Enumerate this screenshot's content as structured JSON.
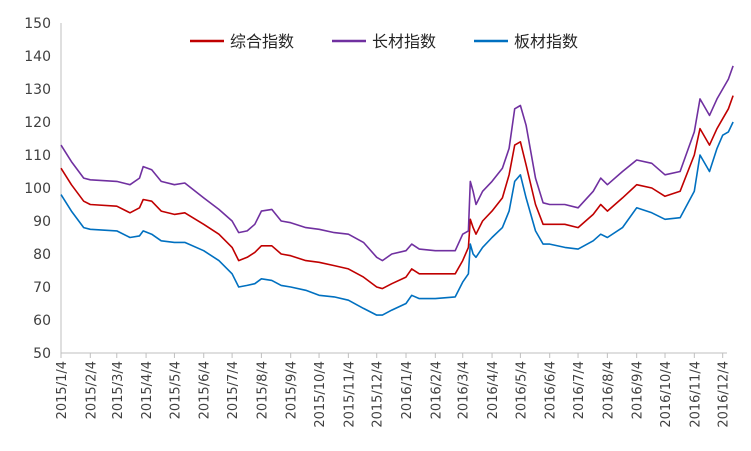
{
  "chart_data": {
    "type": "line",
    "title": "",
    "xlabel": "",
    "ylabel": "",
    "ylim": [
      50,
      150
    ],
    "yticks": [
      50,
      60,
      70,
      80,
      90,
      100,
      110,
      120,
      130,
      140,
      150
    ],
    "grid": false,
    "legend_position": "top-center",
    "x_tick_labels": [
      "2015/1/4",
      "2015/2/4",
      "2015/3/4",
      "2015/4/4",
      "2015/5/4",
      "2015/6/4",
      "2015/7/4",
      "2015/8/4",
      "2015/9/4",
      "2015/10/4",
      "2015/11/4",
      "2015/12/4",
      "2016/1/4",
      "2016/2/4",
      "2016/3/4",
      "2016/4/4",
      "2016/5/4",
      "2016/6/4",
      "2016/7/4",
      "2016/8/4",
      "2016/9/4",
      "2016/10/4",
      "2016/11/4",
      "2016/12/4"
    ],
    "series": [
      {
        "name": "综合指数",
        "color": "#C00000",
        "points": [
          [
            "2015-01-04",
            106
          ],
          [
            "2015-01-15",
            101
          ],
          [
            "2015-01-28",
            96
          ],
          [
            "2015-02-04",
            95
          ],
          [
            "2015-03-04",
            94.5
          ],
          [
            "2015-03-18",
            92.5
          ],
          [
            "2015-03-28",
            94
          ],
          [
            "2015-04-01",
            96.5
          ],
          [
            "2015-04-10",
            96
          ],
          [
            "2015-04-20",
            93
          ],
          [
            "2015-05-04",
            92
          ],
          [
            "2015-05-15",
            92.5
          ],
          [
            "2015-06-04",
            89
          ],
          [
            "2015-06-20",
            86
          ],
          [
            "2015-07-04",
            82
          ],
          [
            "2015-07-11",
            78
          ],
          [
            "2015-07-20",
            79
          ],
          [
            "2015-07-28",
            80.5
          ],
          [
            "2015-08-04",
            82.5
          ],
          [
            "2015-08-15",
            82.5
          ],
          [
            "2015-08-25",
            80
          ],
          [
            "2015-09-04",
            79.5
          ],
          [
            "2015-09-20",
            78
          ],
          [
            "2015-10-04",
            77.5
          ],
          [
            "2015-10-20",
            76.5
          ],
          [
            "2015-11-04",
            75.5
          ],
          [
            "2015-11-20",
            73
          ],
          [
            "2015-12-04",
            70
          ],
          [
            "2015-12-10",
            69.5
          ],
          [
            "2015-12-20",
            71
          ],
          [
            "2016-01-04",
            73
          ],
          [
            "2016-01-10",
            75.5
          ],
          [
            "2016-01-18",
            74
          ],
          [
            "2016-02-04",
            74
          ],
          [
            "2016-02-25",
            74
          ],
          [
            "2016-03-04",
            78
          ],
          [
            "2016-03-10",
            82
          ],
          [
            "2016-03-12",
            90.5
          ],
          [
            "2016-03-15",
            88
          ],
          [
            "2016-03-18",
            86
          ],
          [
            "2016-03-25",
            90
          ],
          [
            "2016-04-04",
            93
          ],
          [
            "2016-04-15",
            97
          ],
          [
            "2016-04-22",
            104
          ],
          [
            "2016-04-28",
            113
          ],
          [
            "2016-05-04",
            114
          ],
          [
            "2016-05-10",
            107
          ],
          [
            "2016-05-20",
            95
          ],
          [
            "2016-05-28",
            89
          ],
          [
            "2016-06-04",
            89
          ],
          [
            "2016-06-20",
            89
          ],
          [
            "2016-07-04",
            88
          ],
          [
            "2016-07-20",
            92
          ],
          [
            "2016-07-28",
            95
          ],
          [
            "2016-08-04",
            93
          ],
          [
            "2016-08-20",
            97
          ],
          [
            "2016-09-04",
            101
          ],
          [
            "2016-09-20",
            100
          ],
          [
            "2016-10-04",
            97.5
          ],
          [
            "2016-10-20",
            99
          ],
          [
            "2016-11-04",
            110
          ],
          [
            "2016-11-10",
            118
          ],
          [
            "2016-11-20",
            113
          ],
          [
            "2016-11-28",
            118
          ],
          [
            "2016-12-04",
            121
          ],
          [
            "2016-12-10",
            124
          ],
          [
            "2016-12-15",
            128
          ]
        ]
      },
      {
        "name": "长材指数",
        "color": "#7030A0",
        "points": [
          [
            "2015-01-04",
            113
          ],
          [
            "2015-01-15",
            108
          ],
          [
            "2015-01-28",
            103
          ],
          [
            "2015-02-04",
            102.5
          ],
          [
            "2015-03-04",
            102
          ],
          [
            "2015-03-18",
            101
          ],
          [
            "2015-03-28",
            103
          ],
          [
            "2015-04-01",
            106.5
          ],
          [
            "2015-04-10",
            105.5
          ],
          [
            "2015-04-20",
            102
          ],
          [
            "2015-05-04",
            101
          ],
          [
            "2015-05-15",
            101.5
          ],
          [
            "2015-06-04",
            97
          ],
          [
            "2015-06-20",
            93.5
          ],
          [
            "2015-07-04",
            90
          ],
          [
            "2015-07-11",
            86.5
          ],
          [
            "2015-07-20",
            87
          ],
          [
            "2015-07-28",
            89
          ],
          [
            "2015-08-04",
            93
          ],
          [
            "2015-08-15",
            93.5
          ],
          [
            "2015-08-25",
            90
          ],
          [
            "2015-09-04",
            89.5
          ],
          [
            "2015-09-20",
            88
          ],
          [
            "2015-10-04",
            87.5
          ],
          [
            "2015-10-20",
            86.5
          ],
          [
            "2015-11-04",
            86
          ],
          [
            "2015-11-20",
            83.5
          ],
          [
            "2015-12-04",
            79
          ],
          [
            "2015-12-10",
            78
          ],
          [
            "2015-12-20",
            80
          ],
          [
            "2016-01-04",
            81
          ],
          [
            "2016-01-10",
            83
          ],
          [
            "2016-01-18",
            81.5
          ],
          [
            "2016-02-04",
            81
          ],
          [
            "2016-02-25",
            81
          ],
          [
            "2016-03-04",
            86
          ],
          [
            "2016-03-10",
            87
          ],
          [
            "2016-03-12",
            102
          ],
          [
            "2016-03-15",
            99
          ],
          [
            "2016-03-18",
            95
          ],
          [
            "2016-03-25",
            99
          ],
          [
            "2016-04-04",
            102
          ],
          [
            "2016-04-15",
            106
          ],
          [
            "2016-04-22",
            112
          ],
          [
            "2016-04-28",
            124
          ],
          [
            "2016-05-04",
            125
          ],
          [
            "2016-05-10",
            119
          ],
          [
            "2016-05-20",
            103
          ],
          [
            "2016-05-28",
            95.5
          ],
          [
            "2016-06-04",
            95
          ],
          [
            "2016-06-20",
            95
          ],
          [
            "2016-07-04",
            94
          ],
          [
            "2016-07-20",
            99
          ],
          [
            "2016-07-28",
            103
          ],
          [
            "2016-08-04",
            101
          ],
          [
            "2016-08-20",
            105
          ],
          [
            "2016-09-04",
            108.5
          ],
          [
            "2016-09-20",
            107.5
          ],
          [
            "2016-10-04",
            104
          ],
          [
            "2016-10-20",
            105
          ],
          [
            "2016-11-04",
            117
          ],
          [
            "2016-11-10",
            127
          ],
          [
            "2016-11-20",
            122
          ],
          [
            "2016-11-28",
            127
          ],
          [
            "2016-12-04",
            130
          ],
          [
            "2016-12-10",
            133
          ],
          [
            "2016-12-15",
            137
          ]
        ]
      },
      {
        "name": "板材指数",
        "color": "#0070C0",
        "points": [
          [
            "2015-01-04",
            98
          ],
          [
            "2015-01-15",
            93
          ],
          [
            "2015-01-28",
            88
          ],
          [
            "2015-02-04",
            87.5
          ],
          [
            "2015-03-04",
            87
          ],
          [
            "2015-03-18",
            85
          ],
          [
            "2015-03-28",
            85.5
          ],
          [
            "2015-04-01",
            87
          ],
          [
            "2015-04-10",
            86
          ],
          [
            "2015-04-20",
            84
          ],
          [
            "2015-05-04",
            83.5
          ],
          [
            "2015-05-15",
            83.5
          ],
          [
            "2015-06-04",
            81
          ],
          [
            "2015-06-20",
            78
          ],
          [
            "2015-07-04",
            74
          ],
          [
            "2015-07-11",
            70
          ],
          [
            "2015-07-20",
            70.5
          ],
          [
            "2015-07-28",
            71
          ],
          [
            "2015-08-04",
            72.5
          ],
          [
            "2015-08-15",
            72
          ],
          [
            "2015-08-25",
            70.5
          ],
          [
            "2015-09-04",
            70
          ],
          [
            "2015-09-20",
            69
          ],
          [
            "2015-10-04",
            67.5
          ],
          [
            "2015-10-20",
            67
          ],
          [
            "2015-11-04",
            66
          ],
          [
            "2015-11-20",
            63.5
          ],
          [
            "2015-12-04",
            61.5
          ],
          [
            "2015-12-10",
            61.5
          ],
          [
            "2015-12-20",
            63
          ],
          [
            "2016-01-04",
            65
          ],
          [
            "2016-01-10",
            67.5
          ],
          [
            "2016-01-18",
            66.5
          ],
          [
            "2016-02-04",
            66.5
          ],
          [
            "2016-02-25",
            67
          ],
          [
            "2016-03-04",
            71.5
          ],
          [
            "2016-03-10",
            74
          ],
          [
            "2016-03-12",
            83
          ],
          [
            "2016-03-15",
            80
          ],
          [
            "2016-03-18",
            79
          ],
          [
            "2016-03-25",
            82
          ],
          [
            "2016-04-04",
            85
          ],
          [
            "2016-04-15",
            88
          ],
          [
            "2016-04-22",
            93
          ],
          [
            "2016-04-28",
            102
          ],
          [
            "2016-05-04",
            104
          ],
          [
            "2016-05-10",
            97
          ],
          [
            "2016-05-20",
            87
          ],
          [
            "2016-05-28",
            83
          ],
          [
            "2016-06-04",
            83
          ],
          [
            "2016-06-20",
            82
          ],
          [
            "2016-07-04",
            81.5
          ],
          [
            "2016-07-20",
            84
          ],
          [
            "2016-07-28",
            86
          ],
          [
            "2016-08-04",
            85
          ],
          [
            "2016-08-20",
            88
          ],
          [
            "2016-09-04",
            94
          ],
          [
            "2016-09-20",
            92.5
          ],
          [
            "2016-10-04",
            90.5
          ],
          [
            "2016-10-20",
            91
          ],
          [
            "2016-11-04",
            99
          ],
          [
            "2016-11-10",
            110
          ],
          [
            "2016-11-20",
            105
          ],
          [
            "2016-11-28",
            112
          ],
          [
            "2016-12-04",
            116
          ],
          [
            "2016-12-10",
            117
          ],
          [
            "2016-12-15",
            120
          ]
        ]
      }
    ]
  }
}
